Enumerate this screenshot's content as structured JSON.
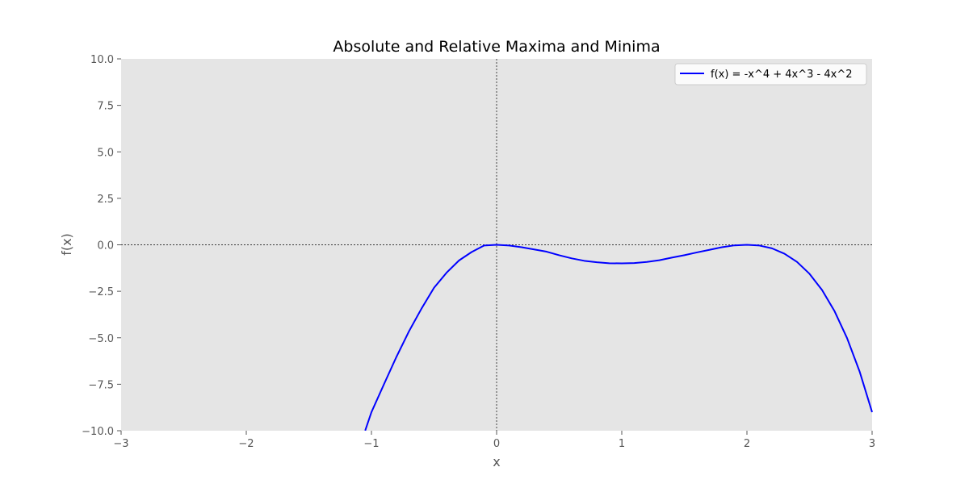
{
  "chart_data": {
    "type": "line",
    "title": "Absolute and Relative Maxima and Minima",
    "xlabel": "x",
    "ylabel": "f(x)",
    "xlim": [
      -3,
      3
    ],
    "ylim": [
      -10,
      10
    ],
    "xticks": [
      -3,
      -2,
      -1,
      0,
      1,
      2,
      3
    ],
    "yticks": [
      -10.0,
      -7.5,
      -5.0,
      -2.5,
      0.0,
      2.5,
      5.0,
      7.5,
      10.0
    ],
    "xtick_labels": [
      "−3",
      "−2",
      "−1",
      "0",
      "1",
      "2",
      "3"
    ],
    "ytick_labels": [
      "−10.0",
      "−7.5",
      "−5.0",
      "−2.5",
      "0.0",
      "2.5",
      "5.0",
      "7.5",
      "10.0"
    ],
    "grid": false,
    "reference_lines": {
      "x": 0,
      "y": 0,
      "style": "dashed",
      "color": "#000000"
    },
    "legend_position": "top-right",
    "background_color": "#e5e5e5",
    "series": [
      {
        "name": "f(x) = -x^4 + 4x^3 - 4x^2",
        "color": "#0000ff",
        "x": [
          -1.05,
          -1.0,
          -0.9,
          -0.8,
          -0.7,
          -0.6,
          -0.5,
          -0.4,
          -0.3,
          -0.2,
          -0.1,
          0.0,
          0.1,
          0.2,
          0.3,
          0.4,
          0.5,
          0.6,
          0.7,
          0.8,
          0.9,
          1.0,
          1.1,
          1.2,
          1.3,
          1.4,
          1.5,
          1.6,
          1.7,
          1.8,
          1.9,
          2.0,
          2.1,
          2.2,
          2.3,
          2.4,
          2.5,
          2.6,
          2.7,
          2.8,
          2.9,
          3.0
        ],
        "y": [
          -9.99,
          -9.0,
          -7.5,
          -6.02,
          -4.65,
          -3.43,
          -2.31,
          -1.5,
          -0.84,
          -0.39,
          -0.04,
          0.0,
          -0.04,
          -0.13,
          -0.25,
          -0.37,
          -0.56,
          -0.73,
          -0.86,
          -0.94,
          -0.99,
          -1.0,
          -0.98,
          -0.92,
          -0.83,
          -0.69,
          -0.56,
          -0.41,
          -0.27,
          -0.13,
          -0.03,
          0.0,
          -0.04,
          -0.19,
          -0.48,
          -0.92,
          -1.56,
          -2.43,
          -3.57,
          -5.02,
          -6.81,
          -9.0
        ]
      }
    ]
  }
}
